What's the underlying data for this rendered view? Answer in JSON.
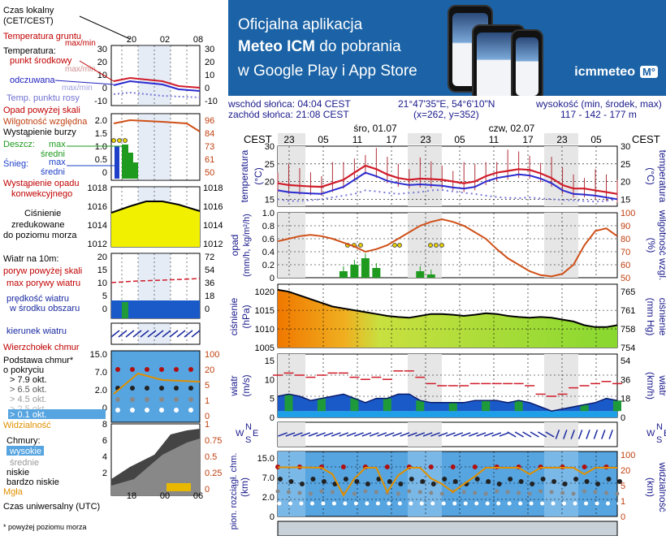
{
  "banner": {
    "line1": "Oficjalna aplikacja",
    "brand": "Meteo ICM",
    "line2_rest": " do pobrania",
    "line3": "w Google Play i App Store",
    "logo": "icmmeteo",
    "logo_badge": "M°"
  },
  "info": {
    "sunrise": "wschód słońca: 04:04 CEST",
    "sunset": "zachód słońca: 21:08 CEST",
    "coords": "21°47'35\"E, 54°6'10\"N",
    "grid": "(x=262, y=352)",
    "height_label": "wysokość (min, środek, max)",
    "height_values": "117 - 142 - 177 m"
  },
  "legend": {
    "time_local": "Czas lokalny",
    "time_zone": "(CET/CEST)",
    "temp_ground": "Temperatura gruntu",
    "maxmin": "max/min",
    "temp": "Temperatura:",
    "mid": "punkt środkowy",
    "maxmin2": "max/min",
    "feels": "odczuwana",
    "maxmin3": "max/min",
    "dew": "Temp. punktu rosy",
    "precip_above": "Opad powyżej skali",
    "humidity": "Wilgotność względna",
    "storm": "Wystąpienie burzy",
    "rain": "Deszcz:",
    "snow": "Śnieg:",
    "max": "max",
    "avg": "średni",
    "precip_occ": "Wystąpienie opadu",
    "convective": "konwekcyjnego",
    "pressure": "Ciśnienie",
    "reduced": "zredukowane",
    "sea": "do poziomu morza",
    "wind10": "Wiatr na 10m:",
    "gust_above": "poryw powyżej skali",
    "gust_max": "max porywy wiatru",
    "wind_speed": "prędkość wiatru",
    "wind_area": "w środku obszaru",
    "wind_dir": "kierunek wiatru",
    "cloud_top": "Wierzchołek chmur",
    "cloud_base": "Podstawa chmur*",
    "by_cover": "o pokryciu",
    "c79": "> 7.9 okt.",
    "c65": "> 6.5 okt.",
    "c45": "> 4.5 okt.",
    "c25": "> 2.5 okt.",
    "c01": "> 0.1 okt.",
    "visibility": "Widzialność",
    "clouds": "Chmury:",
    "high": "wysokie",
    "medium": "średnie",
    "low": "niskie",
    "vlow": "bardzo niskie",
    "fog": "Mgła",
    "utc": "Czas uniwersalny (UTC)",
    "footnote": "* powyżej poziomu morza"
  },
  "legend_axes": {
    "top_ticks": [
      "20",
      "02",
      "08"
    ],
    "bottom_ticks": [
      "18",
      "00",
      "06"
    ],
    "temp_left": [
      "30",
      "20",
      "10",
      "0",
      "-10"
    ],
    "temp_right": [
      "30",
      "20",
      "10",
      "0",
      "-10"
    ],
    "precip_left": [
      "2.0",
      "1.5",
      "1.0",
      "0.5",
      "0"
    ],
    "precip_right": [
      "96",
      "84",
      "73",
      "61",
      "50"
    ],
    "press_left": [
      "1018",
      "1016",
      "1014",
      "1012"
    ],
    "press_right": [
      "1018",
      "1016",
      "1014",
      "1012"
    ],
    "wind_left": [
      "20",
      "15",
      "10",
      "5",
      "0"
    ],
    "wind_right": [
      "72",
      "54",
      "36",
      "18",
      "0"
    ],
    "cloud_left": [
      "15.0",
      "7.0",
      "2.0",
      "0"
    ],
    "cloud_right": [
      "100",
      "20",
      "5",
      "1",
      "0"
    ],
    "cl_left": [
      "8",
      "6",
      "4",
      "2"
    ],
    "cl_right": [
      "1",
      "0.75",
      "0.5",
      "0.25",
      "0"
    ]
  },
  "main_axes": {
    "cest": "CEST",
    "day1": "śro, 01.07",
    "day2": "czw, 02.07",
    "hours": [
      "23",
      "05",
      "11",
      "17",
      "23",
      "05",
      "11",
      "17",
      "23",
      "05"
    ],
    "temp_title": "temperatura",
    "temp_unit": "(°C)",
    "temp_ticks": [
      "30",
      "25",
      "20",
      "15"
    ],
    "precip_title": "opad",
    "precip_unit": "(mm/h, kg/m²/h)",
    "precip_ticks": [
      "1.0",
      "0.8",
      "0.6",
      "0.4",
      "0.2",
      "0"
    ],
    "hum_title": "wilgotność wzgl.",
    "hum_unit": "(%)",
    "hum_ticks": [
      "100",
      "90",
      "80",
      "70",
      "60",
      "50"
    ],
    "press_title": "ciśnienie",
    "press_unit": "(hPa)",
    "press_ticks": [
      "1020",
      "1015",
      "1010",
      "1005"
    ],
    "press_mm_unit": "(mm Hg)",
    "press_mm_ticks": [
      "765",
      "761",
      "758",
      "754"
    ],
    "wind_title": "wiatr",
    "wind_unit": "(m/s)",
    "wind_ticks": [
      "15",
      "10",
      "5",
      "0"
    ],
    "wind_kmh_unit": "(km/h)",
    "wind_kmh_ticks": [
      "54",
      "36",
      "18",
      "0"
    ],
    "cloud_title": "pion. rozciągł. chm.",
    "cloud_unit": "(km)",
    "cloud_ticks": [
      "15.0",
      "7.0",
      "2.0",
      "0"
    ],
    "vis_title": "widzialność",
    "vis_unit": "(km)",
    "vis_ticks": [
      "100",
      "20",
      "5",
      "1",
      "0"
    ],
    "compass": {
      "w": "W",
      "s": "S",
      "n": "N",
      "e": "E"
    }
  },
  "chart_data": [
    {
      "type": "line",
      "title": "temperatura (°C)",
      "ylim": [
        13,
        30
      ],
      "series": [
        {
          "name": "punkt środkowy",
          "values": [
            19.5,
            19,
            18.8,
            18.6,
            18.5,
            19.5,
            20.5,
            22.5,
            24.5,
            23.5,
            22,
            21,
            20.5,
            20.8,
            20.7,
            20.5,
            20,
            19.5,
            20,
            21.5,
            22.5,
            23,
            23.5,
            23.3,
            22.3,
            21,
            19,
            18,
            18,
            17.5,
            17,
            16.5
          ]
        },
        {
          "name": "odczuwana",
          "values": [
            17.5,
            17,
            16.8,
            16.6,
            16.5,
            17.5,
            18.5,
            20.5,
            22.5,
            21.5,
            20.2,
            19.5,
            19,
            19.2,
            19,
            18.8,
            18.3,
            18,
            18.5,
            20,
            21,
            21.5,
            22,
            21.7,
            20.8,
            19.5,
            17.5,
            16.5,
            16.3,
            16,
            15.5,
            15
          ]
        },
        {
          "name": "Temp. punktu rosy",
          "values": [
            15,
            14.5,
            14.5,
            14.7,
            15,
            15.5,
            16,
            16.5,
            17.5,
            17.2,
            16.8,
            16.5,
            16.8,
            17,
            17.5,
            17.6,
            17.2,
            16.8,
            16.5,
            16,
            15.6,
            15.4,
            15.3,
            15.5,
            15.2,
            15,
            14.8,
            14.7,
            14.5,
            14.3,
            14.5,
            15
          ]
        }
      ]
    },
    {
      "type": "bar",
      "title": "opad (mm/h, kg/m²/h)",
      "ylim": [
        0,
        1
      ],
      "series": [
        {
          "name": "max",
          "values": [
            0,
            0,
            0,
            0,
            0,
            0,
            0.1,
            0.2,
            0.3,
            0.15,
            0,
            0,
            0,
            0.1,
            0.05,
            0,
            0,
            0,
            0,
            0,
            0,
            0,
            0,
            0,
            0,
            0,
            0,
            0,
            0,
            0,
            0,
            0
          ]
        }
      ]
    },
    {
      "type": "line",
      "title": "wilgotność wzgl. (%)",
      "ylim": [
        50,
        100
      ],
      "series": [
        {
          "name": "Wilgotność względna",
          "values": [
            78,
            80,
            82,
            83,
            82,
            80,
            77,
            74,
            70,
            72,
            75,
            80,
            85,
            90,
            93,
            95,
            93,
            90,
            85,
            80,
            72,
            65,
            60,
            55,
            52,
            51,
            53,
            60,
            75,
            86,
            88,
            82
          ]
        }
      ]
    },
    {
      "type": "area",
      "title": "ciśnienie (hPa)",
      "ylim": [
        1005,
        1022
      ],
      "series": [
        {
          "name": "Ciśnienie",
          "values": [
            1020.5,
            1020,
            1019,
            1018,
            1017,
            1016,
            1015.5,
            1015,
            1014.5,
            1014,
            1013.5,
            1013.2,
            1013,
            1013.5,
            1014,
            1014,
            1013.8,
            1013.5,
            1013.8,
            1014.2,
            1014,
            1013.5,
            1013.2,
            1013,
            1013.2,
            1013,
            1012.5,
            1012,
            1011,
            1010.5,
            1010.5,
            1011
          ]
        }
      ]
    },
    {
      "type": "area",
      "title": "wiatr (m/s)",
      "ylim": [
        0,
        15
      ],
      "series": [
        {
          "name": "prędkość wiatru",
          "values": [
            5,
            5.5,
            5,
            4,
            4.5,
            5,
            5.5,
            4.5,
            3.5,
            4.5,
            4.5,
            5.5,
            5.5,
            4,
            3.5,
            3.5,
            3.5,
            3.5,
            4,
            4,
            4,
            3.5,
            4,
            3.5,
            2.5,
            1.5,
            2,
            2.5,
            3,
            3.5,
            4.5,
            4
          ]
        },
        {
          "name": "max porywy wiatru",
          "values": [
            10,
            10.5,
            10,
            9.5,
            10,
            10.5,
            10.5,
            9.5,
            9,
            9.5,
            9,
            11,
            11,
            9.5,
            8,
            7.5,
            7.5,
            7.5,
            8,
            8,
            8,
            8,
            8,
            7.5,
            5.5,
            5,
            5.5,
            7,
            7.5,
            8,
            8.5,
            8
          ]
        }
      ]
    },
    {
      "type": "line",
      "title": "widzialność (km)",
      "ylim": [
        0,
        100
      ],
      "series": [
        {
          "name": "Widzialność",
          "values": [
            22,
            22,
            22,
            21,
            20,
            14,
            2.2,
            10,
            20,
            20,
            3,
            13,
            20,
            20,
            10,
            5,
            3,
            5,
            12,
            20,
            20,
            20,
            20,
            14,
            20,
            20,
            20,
            20,
            14,
            20,
            20,
            20
          ]
        }
      ]
    }
  ]
}
